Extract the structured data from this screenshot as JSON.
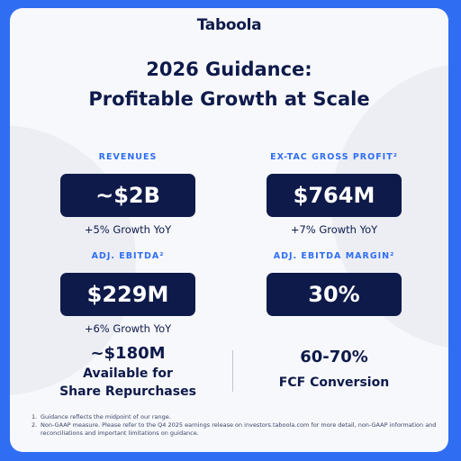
{
  "brand": {
    "logo_text": "Taboola"
  },
  "title": {
    "line1": "2026 Guidance:",
    "line2": "Profitable Growth at Scale"
  },
  "metrics": [
    {
      "label": "REVENUES",
      "value": "~$2B",
      "growth": "+5% Growth YoY"
    },
    {
      "label": "EX-TAC GROSS PROFIT²",
      "value": "$764M",
      "growth": "+7% Growth YoY"
    },
    {
      "label": "ADJ. EBITDA²",
      "value": "$229M",
      "growth": "+6% Growth YoY"
    },
    {
      "label": "ADJ. EBITDA MARGIN²",
      "value": "30%",
      "growth": ""
    }
  ],
  "repurchase": {
    "amount": "~$180M",
    "line1": "Available for",
    "line2": "Share Repurchases"
  },
  "fcf": {
    "value": "60-70%",
    "label": "FCF Conversion"
  },
  "footnotes": [
    {
      "num": "1.",
      "text": "Guidance reflects the midpoint of our range."
    },
    {
      "num": "2.",
      "text": "Non-GAAP measure. Please refer to the Q4 2025 earnings release on investors.taboola.com for more detail, non-GAAP information and reconciliations and important limitations on guidance."
    }
  ],
  "colors": {
    "background": "#2f6ef3",
    "card": "#f7f8fb",
    "navy": "#0e1a4a",
    "accent": "#2f6ef3"
  }
}
